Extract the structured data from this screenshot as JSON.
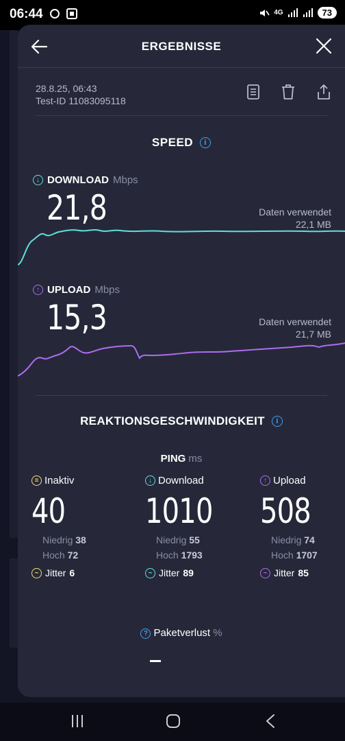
{
  "status_bar": {
    "time": "06:44",
    "battery": "73",
    "network": "4G"
  },
  "header": {
    "title": "ERGEBNISSE"
  },
  "test": {
    "datetime": "28.8.25, 06:43",
    "test_id": "Test-ID 11083095118"
  },
  "speed": {
    "title": "SPEED",
    "download": {
      "label": "DOWNLOAD",
      "unit": "Mbps",
      "value": "21,8",
      "data_used_label": "Daten verwendet",
      "data_used_value": "22,1 MB"
    },
    "upload": {
      "label": "UPLOAD",
      "unit": "Mbps",
      "value": "15,3",
      "data_used_label": "Daten verwendet",
      "data_used_value": "21,7 MB"
    }
  },
  "latency": {
    "title": "REAKTIONSGESCHWINDIGKEIT",
    "ping_label": "PING",
    "ping_unit": "ms",
    "columns": [
      {
        "label": "Inaktiv",
        "value": "40",
        "low_label": "Niedrig",
        "low": "38",
        "high_label": "Hoch",
        "high": "72",
        "jitter_label": "Jitter",
        "jitter": "6"
      },
      {
        "label": "Download",
        "value": "1010",
        "low_label": "Niedrig",
        "low": "55",
        "high_label": "Hoch",
        "high": "1793",
        "jitter_label": "Jitter",
        "jitter": "89"
      },
      {
        "label": "Upload",
        "value": "508",
        "low_label": "Niedrig",
        "low": "74",
        "high_label": "Hoch",
        "high": "1707",
        "jitter_label": "Jitter",
        "jitter": "85"
      }
    ]
  },
  "packet_loss": {
    "label": "Paketverlust",
    "unit": "%",
    "value": "–"
  },
  "colors": {
    "download": "#5ee0e0",
    "upload": "#b06cf0",
    "idle": "#f0e070",
    "info": "#3fa3f0"
  }
}
